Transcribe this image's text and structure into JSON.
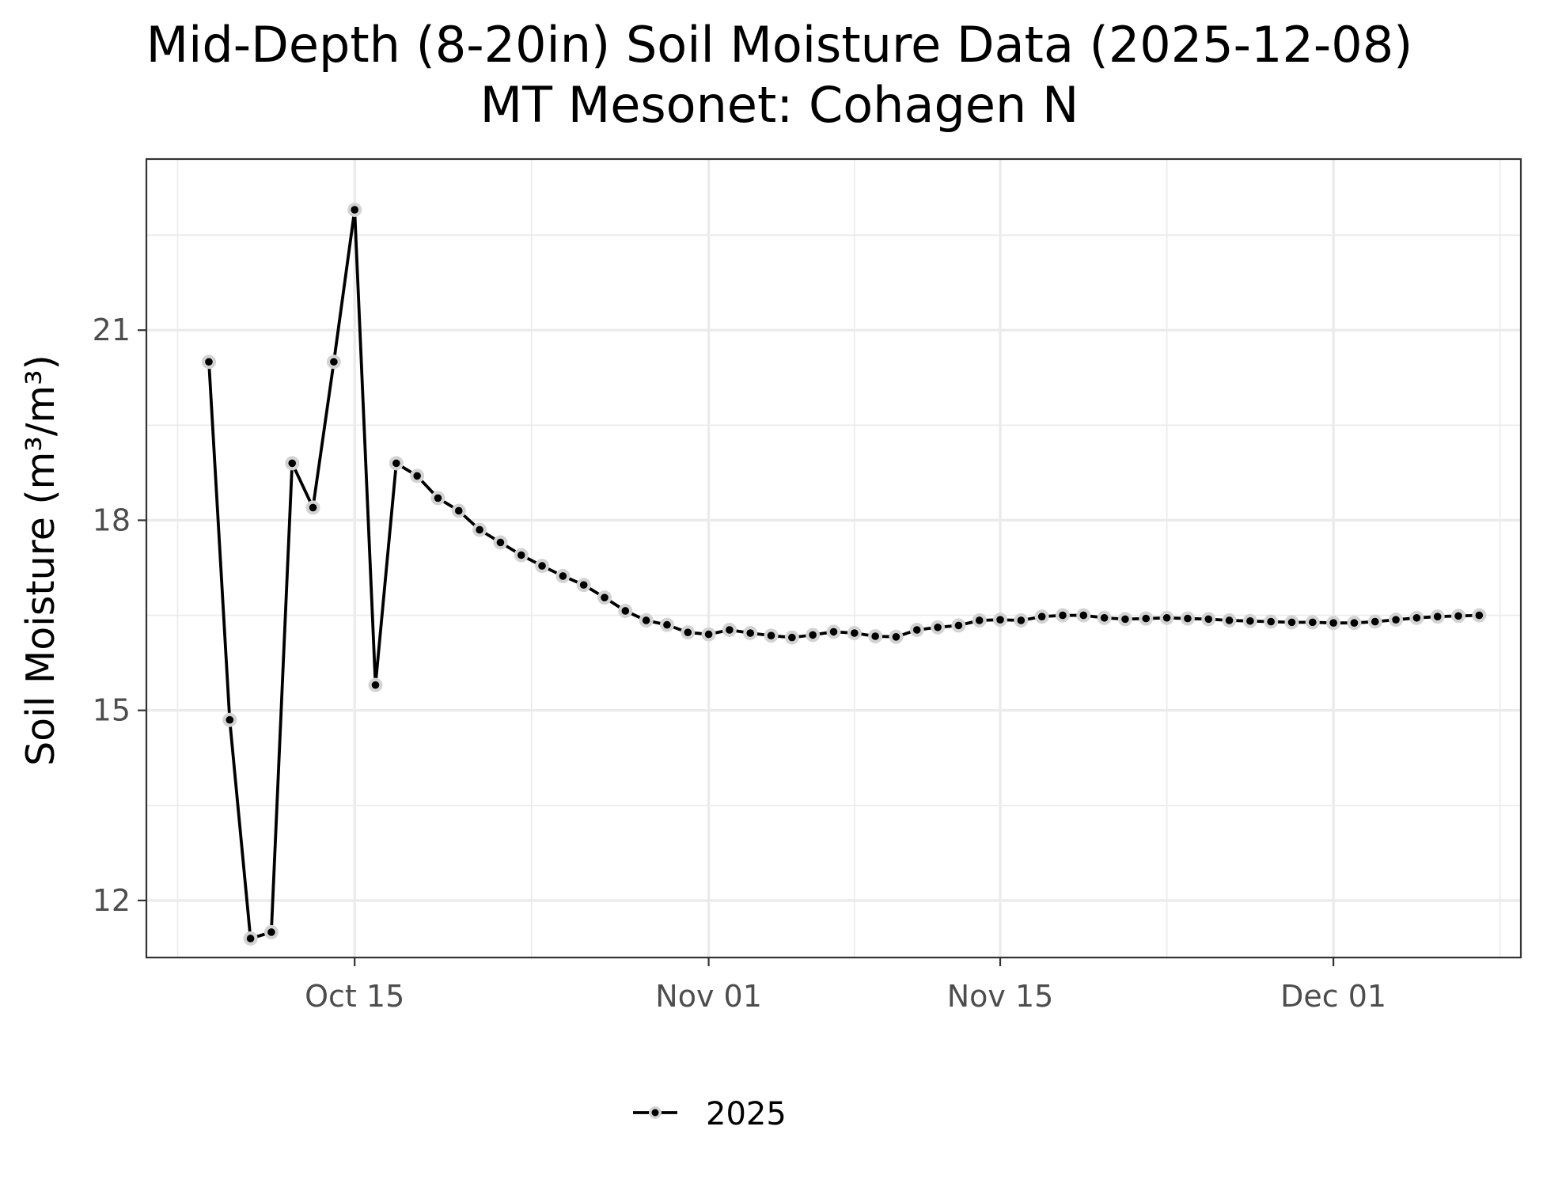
{
  "chart_data": {
    "type": "line",
    "title": "Mid-Depth (8-20in) Soil Moisture Data (2025-12-08)",
    "subtitle": "MT Mesonet: Cohagen N",
    "xlabel": "",
    "ylabel": "Soil Moisture (m³/m³)",
    "x_tick_labels": [
      "Oct 15",
      "Nov 01",
      "Nov 15",
      "Dec 01"
    ],
    "x_ticks": [
      "2025-10-15",
      "2025-11-01",
      "2025-11-15",
      "2025-12-01"
    ],
    "y_tick_labels": [
      "12",
      "15",
      "18",
      "21"
    ],
    "y_ticks": [
      12,
      15,
      18,
      21
    ],
    "xlim": [
      "2025-10-05",
      "2025-12-10"
    ],
    "ylim": [
      11.1,
      23.7
    ],
    "grid": true,
    "legend_position": "bottom",
    "line_color": "#000000",
    "point_halo_color": "#d3d3d3",
    "series": [
      {
        "name": "2025",
        "x": [
          "2025-10-08",
          "2025-10-09",
          "2025-10-10",
          "2025-10-11",
          "2025-10-12",
          "2025-10-13",
          "2025-10-14",
          "2025-10-15",
          "2025-10-16",
          "2025-10-17",
          "2025-10-18",
          "2025-10-19",
          "2025-10-20",
          "2025-10-21",
          "2025-10-22",
          "2025-10-23",
          "2025-10-24",
          "2025-10-25",
          "2025-10-26",
          "2025-10-27",
          "2025-10-28",
          "2025-10-29",
          "2025-10-30",
          "2025-10-31",
          "2025-11-01",
          "2025-11-02",
          "2025-11-03",
          "2025-11-04",
          "2025-11-05",
          "2025-11-06",
          "2025-11-07",
          "2025-11-08",
          "2025-11-09",
          "2025-11-10",
          "2025-11-11",
          "2025-11-12",
          "2025-11-13",
          "2025-11-14",
          "2025-11-15",
          "2025-11-16",
          "2025-11-17",
          "2025-11-18",
          "2025-11-19",
          "2025-11-20",
          "2025-11-21",
          "2025-11-22",
          "2025-11-23",
          "2025-11-24",
          "2025-11-25",
          "2025-11-26",
          "2025-11-27",
          "2025-11-28",
          "2025-11-29",
          "2025-11-30",
          "2025-12-01",
          "2025-12-02",
          "2025-12-03",
          "2025-12-04",
          "2025-12-05",
          "2025-12-06",
          "2025-12-07",
          "2025-12-08"
        ],
        "values": [
          20.5,
          14.85,
          11.4,
          11.5,
          18.9,
          18.2,
          20.5,
          22.9,
          15.4,
          18.9,
          18.7,
          18.35,
          18.15,
          17.85,
          17.65,
          17.45,
          17.28,
          17.12,
          16.98,
          16.78,
          16.57,
          16.42,
          16.35,
          16.23,
          16.2,
          16.27,
          16.22,
          16.18,
          16.15,
          16.19,
          16.24,
          16.22,
          16.17,
          16.16,
          16.27,
          16.31,
          16.34,
          16.42,
          16.43,
          16.42,
          16.48,
          16.5,
          16.5,
          16.46,
          16.44,
          16.45,
          16.46,
          16.45,
          16.44,
          16.42,
          16.41,
          16.4,
          16.39,
          16.39,
          16.38,
          16.38,
          16.4,
          16.43,
          16.46,
          16.48,
          16.49,
          16.5
        ]
      }
    ]
  }
}
